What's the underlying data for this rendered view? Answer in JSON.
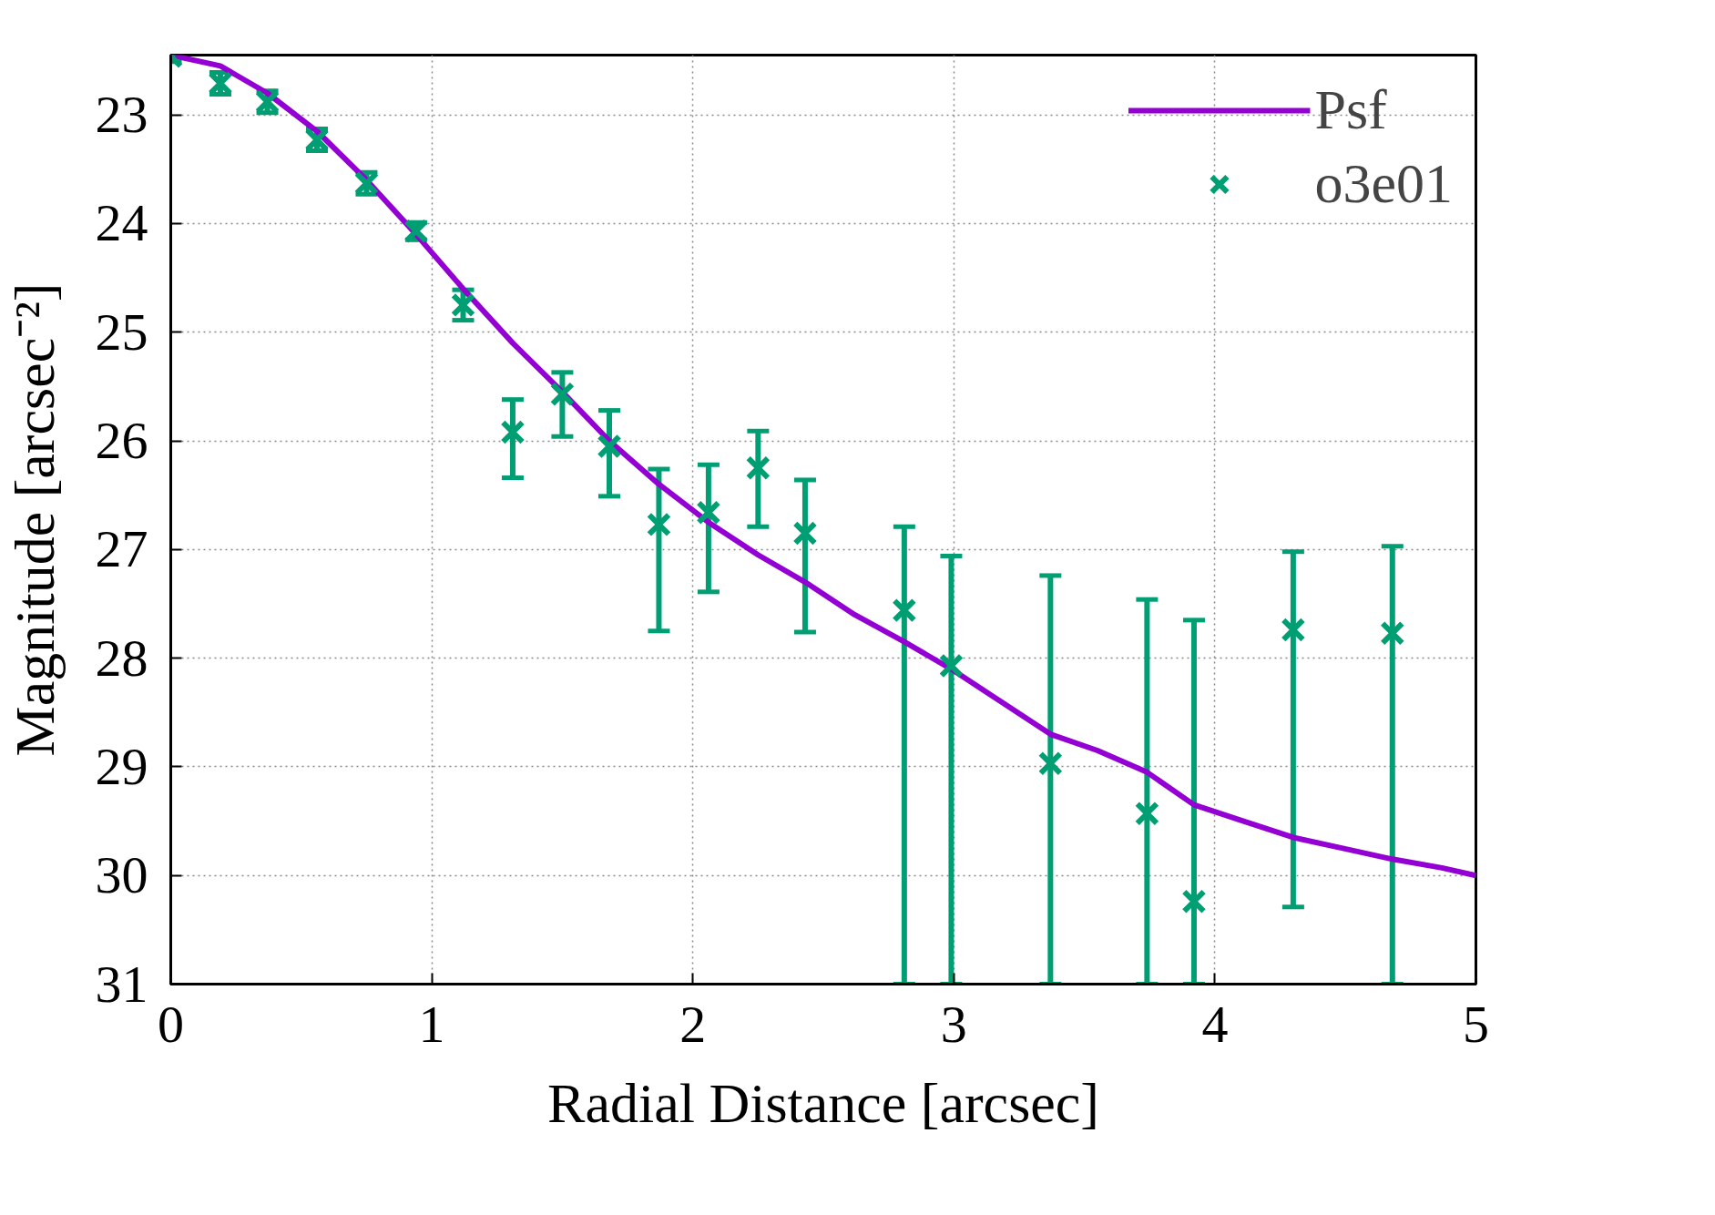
{
  "chart_data": {
    "type": "scatter",
    "xlabel": "Radial Distance [arcsec]",
    "ylabel": "Magnitude [arcsec⁻²]",
    "xlim": [
      0,
      5
    ],
    "ylim": [
      31,
      22.45
    ],
    "xticks": [
      0,
      1,
      2,
      3,
      4,
      5
    ],
    "yticks": [
      23,
      24,
      25,
      26,
      27,
      28,
      29,
      30,
      31
    ],
    "grid": true,
    "legend": "top right",
    "series": [
      {
        "name": "Psf",
        "type": "line",
        "color": "#9400d3",
        "marker": "none",
        "line_style": "solid",
        "x": [
          0,
          0.19,
          0.37,
          0.56,
          0.75,
          0.94,
          1.12,
          1.31,
          1.5,
          1.68,
          1.87,
          2.06,
          2.25,
          2.43,
          2.62,
          2.81,
          2.99,
          3.18,
          3.37,
          3.55,
          3.74,
          3.92,
          4.11,
          4.3,
          4.49,
          4.68,
          4.87,
          5
        ],
        "values": [
          22.45,
          22.55,
          22.8,
          23.15,
          23.6,
          24.1,
          24.6,
          25.1,
          25.55,
          26.0,
          26.4,
          26.75,
          27.05,
          27.3,
          27.6,
          27.85,
          28.1,
          28.4,
          28.7,
          28.85,
          29.05,
          29.35,
          29.5,
          29.65,
          29.75,
          29.85,
          29.93,
          30.0
        ]
      },
      {
        "name": "o3e01",
        "color": "#009e73",
        "marker": "cross",
        "x": [
          0,
          0.19,
          0.37,
          0.56,
          0.75,
          0.94,
          1.12,
          1.31,
          1.5,
          1.68,
          1.87,
          2.06,
          2.25,
          2.43,
          2.81,
          2.99,
          3.37,
          3.74,
          3.92,
          4.3,
          4.68
        ],
        "values": [
          22.46,
          22.71,
          22.88,
          23.23,
          23.63,
          24.07,
          24.75,
          25.92,
          25.57,
          26.05,
          26.77,
          26.66,
          26.25,
          26.85,
          27.56,
          28.07,
          28.97,
          29.43,
          30.24,
          27.74,
          27.77
        ],
        "errors": [
          0.05,
          0.1,
          0.1,
          0.1,
          0.1,
          0.08,
          0.14,
          [
            25.62,
            26.34
          ],
          [
            25.37,
            25.96
          ],
          [
            25.72,
            26.51
          ],
          [
            26.26,
            27.75
          ],
          [
            26.22,
            27.39
          ],
          [
            25.91,
            26.79
          ],
          [
            26.36,
            27.76
          ],
          [
            26.79,
            31
          ],
          [
            27.06,
            31
          ],
          [
            27.24,
            31
          ],
          [
            27.46,
            31
          ],
          [
            27.65,
            31
          ],
          [
            27.02,
            30.29
          ],
          [
            26.97,
            31
          ]
        ]
      }
    ]
  }
}
